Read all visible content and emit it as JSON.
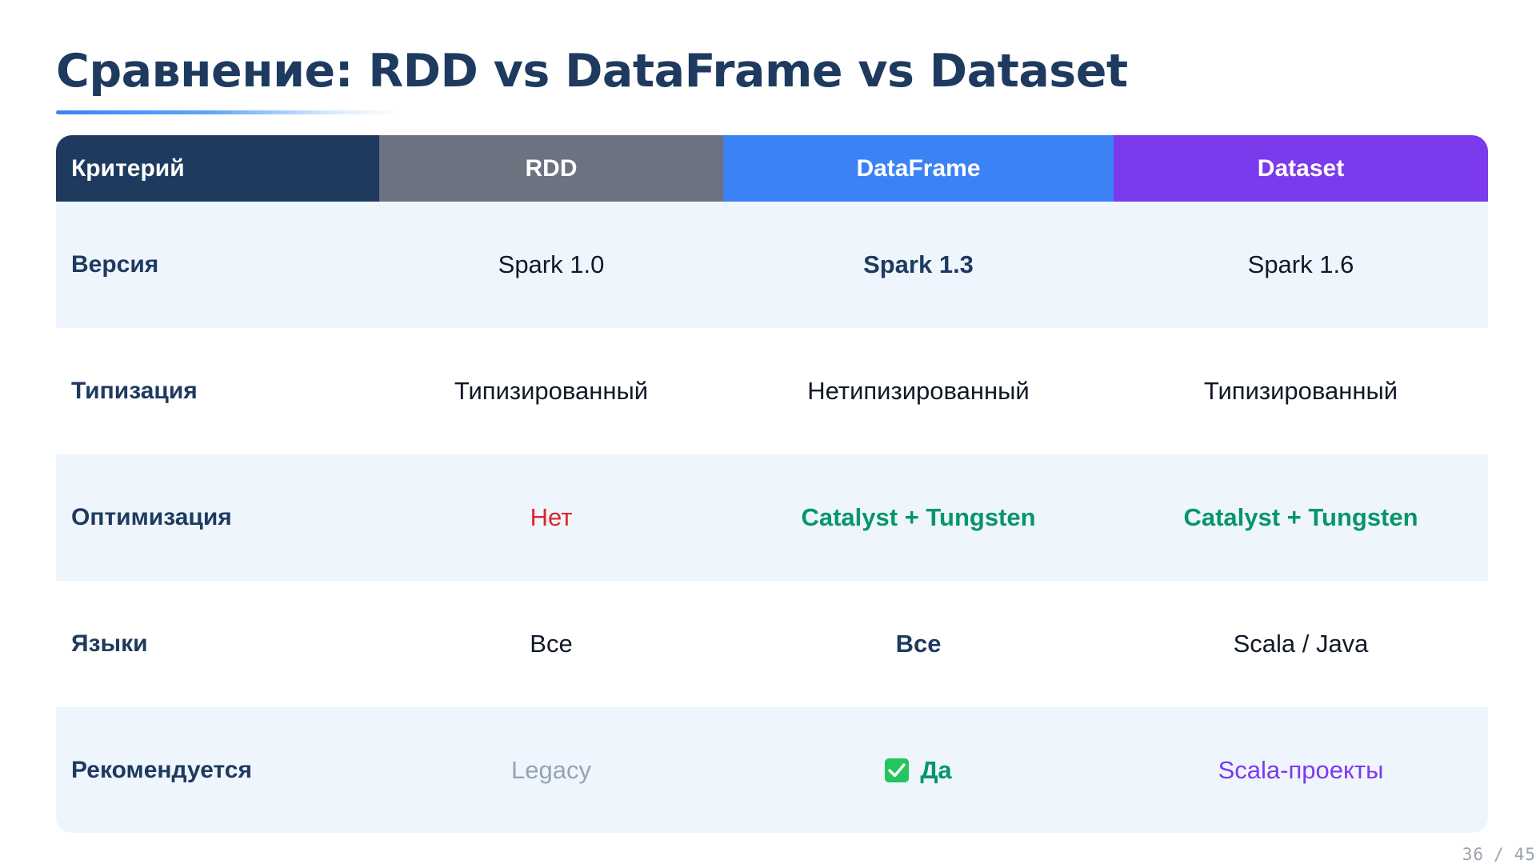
{
  "slide": {
    "title": "Сравнение: RDD vs DataFrame vs Dataset",
    "page_current": "36",
    "page_separator": "/",
    "page_total": "45"
  },
  "table": {
    "headers": [
      "Критерий",
      "RDD",
      "DataFrame",
      "Dataset"
    ],
    "header_colors": [
      "#1e3a5f",
      "#6b7280",
      "#3b82f6",
      "#7c3aed"
    ],
    "rows": [
      {
        "criterion": "Версия",
        "rdd": "Spark 1.0",
        "dataframe": "Spark 1.3",
        "dataset": "Spark 1.6"
      },
      {
        "criterion": "Типизация",
        "rdd": "Типизированный",
        "dataframe": "Нетипизированный",
        "dataset": "Типизированный"
      },
      {
        "criterion": "Оптимизация",
        "rdd": "Нет",
        "dataframe": "Catalyst + Tungsten",
        "dataset": "Catalyst + Tungsten"
      },
      {
        "criterion": "Языки",
        "rdd": "Все",
        "dataframe": "Все",
        "dataset": "Scala / Java"
      },
      {
        "criterion": "Рекомендуется",
        "rdd": "Legacy",
        "dataframe": "Да",
        "dataset": "Scala-проекты",
        "dataframe_icon": "check-mark-icon"
      }
    ]
  },
  "colors": {
    "title": "#1e3a5f",
    "negative": "#dc2626",
    "positive": "#059669",
    "legacy": "#94a3b8",
    "scala": "#7c3aed",
    "row_shade": "#eff5fc"
  }
}
